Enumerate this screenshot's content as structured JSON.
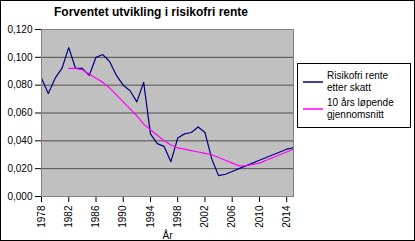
{
  "chart_data": {
    "type": "line",
    "title": "Forventet utvikling i risikofri rente",
    "x_label": "År",
    "x": [
      1978,
      1979,
      1980,
      1981,
      1982,
      1983,
      1984,
      1985,
      1986,
      1987,
      1988,
      1989,
      1990,
      1991,
      1992,
      1993,
      1994,
      1995,
      1996,
      1997,
      1998,
      1999,
      2000,
      2001,
      2002,
      2003,
      2004,
      2005,
      2006,
      2007,
      2008,
      2009,
      2010,
      2011,
      2012,
      2013,
      2014,
      2015
    ],
    "series": [
      {
        "name": "Risikofri rente etter skatt",
        "color": "#000080",
        "values": [
          0.085,
          0.074,
          0.085,
          0.092,
          0.107,
          0.092,
          0.092,
          0.087,
          0.1,
          0.102,
          0.097,
          0.087,
          0.08,
          0.076,
          0.068,
          0.082,
          0.045,
          0.038,
          0.036,
          0.025,
          0.042,
          0.045,
          0.046,
          0.05,
          0.046,
          0.027,
          0.015,
          0.016,
          0.018,
          0.02,
          0.022,
          0.024,
          0.026,
          0.028,
          0.03,
          0.032,
          0.034,
          0.035
        ]
      },
      {
        "name": "10 års løpende gjennomsnitt",
        "color": "#ff00ff",
        "values": [
          null,
          null,
          null,
          null,
          0.092,
          0.092,
          0.091,
          0.088,
          0.085,
          0.082,
          0.078,
          0.073,
          0.068,
          0.063,
          0.058,
          0.052,
          0.048,
          0.044,
          0.04,
          0.037,
          0.035,
          0.034,
          0.033,
          0.032,
          0.031,
          0.03,
          0.028,
          0.026,
          0.024,
          0.022,
          0.022,
          0.023,
          0.024,
          0.026,
          0.028,
          0.03,
          0.032,
          0.034
        ]
      }
    ],
    "xlim": [
      1978,
      2015
    ],
    "xticks": [
      1978,
      1982,
      1986,
      1990,
      1994,
      1998,
      2002,
      2006,
      2010,
      2014
    ],
    "ylim": [
      0,
      0.12
    ],
    "yticks": [
      {
        "value": 0,
        "label": "0,000"
      },
      {
        "value": 0.02,
        "label": "0,020"
      },
      {
        "value": 0.04,
        "label": "0,040"
      },
      {
        "value": 0.06,
        "label": "0,060"
      },
      {
        "value": 0.08,
        "label": "0,080"
      },
      {
        "value": 0.1,
        "label": "0,100"
      },
      {
        "value": 0.12,
        "label": "0,120"
      }
    ],
    "grid": true,
    "legend": "right"
  }
}
